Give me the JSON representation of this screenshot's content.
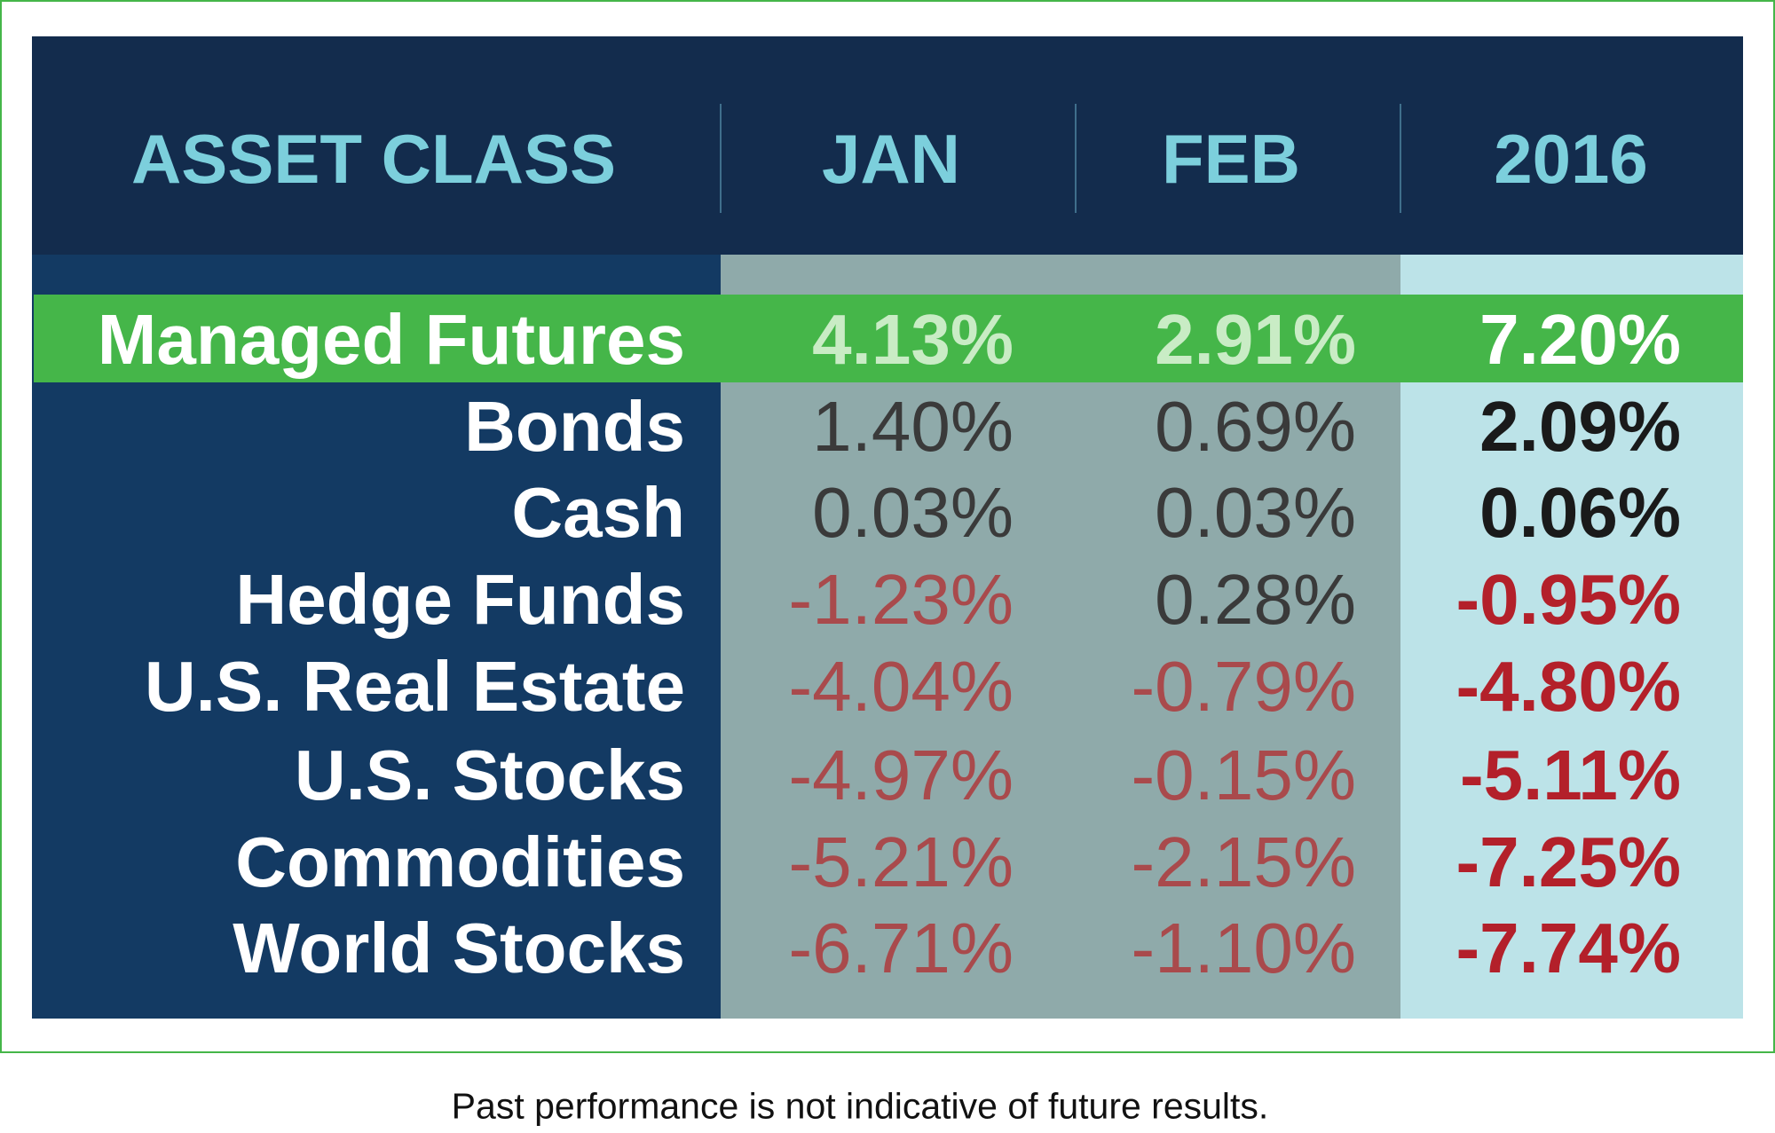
{
  "table": {
    "header": [
      "ASSET CLASS",
      "JAN",
      "FEB",
      "2016"
    ],
    "rows": [
      [
        "Managed Futures",
        "4.13%",
        "2.91%",
        "7.20%"
      ],
      [
        "Bonds",
        "1.40%",
        "0.69%",
        "2.09%"
      ],
      [
        "Cash",
        "0.03%",
        "0.03%",
        "0.06%"
      ],
      [
        "Hedge Funds",
        "-1.23%",
        "0.28%",
        "-0.95%"
      ],
      [
        "U.S. Real Estate",
        "-4.04%",
        "-0.79%",
        "-4.80%"
      ],
      [
        "U.S. Stocks",
        "-4.97%",
        "-0.15%",
        "-5.11%"
      ],
      [
        "Commodities",
        "-5.21%",
        "-2.15%",
        "-7.25%"
      ],
      [
        "World Stocks",
        "-6.71%",
        "-1.10%",
        "-7.74%"
      ]
    ]
  },
  "footnote": "Past performance is not indicative of future results."
}
